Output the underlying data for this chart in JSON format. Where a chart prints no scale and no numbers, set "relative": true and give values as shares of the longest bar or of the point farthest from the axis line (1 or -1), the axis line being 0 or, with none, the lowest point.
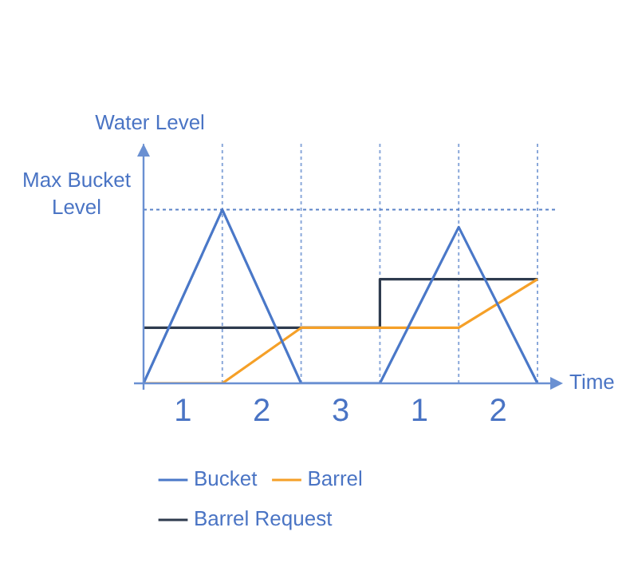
{
  "chart_data": {
    "type": "line",
    "relative": true,
    "xlabel": "Time",
    "ylabel": "Water Level",
    "categories": [
      null,
      null,
      null,
      null,
      null,
      null
    ],
    "series": [
      {
        "name": "Bucket",
        "color": "#4a78c8",
        "values": [
          0,
          1,
          0,
          0,
          0.9,
          0
        ]
      },
      {
        "name": "Barrel",
        "color": "#f5a028",
        "values": [
          0,
          0,
          0.32,
          0.32,
          0.32,
          0.6
        ]
      },
      {
        "name": "Barrel Request",
        "type": "step",
        "color": "#2e3b4e",
        "values": [
          0.32,
          0.32,
          0.32,
          0.32,
          0.6,
          0.6
        ]
      }
    ],
    "ref_lines": [
      {
        "axis": "y",
        "value": 1,
        "label": "Max Bucket Level",
        "color": "#5a82c8",
        "line_style": "dotted"
      }
    ],
    "annotations": [
      "1",
      "2",
      "3",
      "1",
      "2"
    ],
    "legend": "bottom",
    "grid": "x",
    "marker": "none",
    "line_style": "solid"
  }
}
